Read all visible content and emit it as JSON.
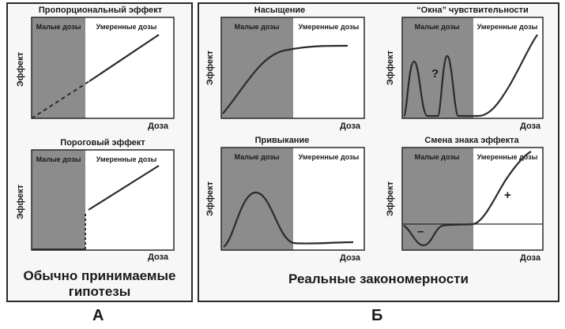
{
  "group_a": {
    "caption": "Обычно принимаемые гипотезы",
    "letter": "А"
  },
  "group_b": {
    "caption": "Реальные закономерности",
    "letter": "Б"
  },
  "zones": {
    "low": "Малые дозы",
    "moderate": "Умеренные дозы"
  },
  "axes": {
    "x": "Доза",
    "y": "Эффект"
  },
  "panels": [
    {
      "title": "Пропорциональный эффект"
    },
    {
      "title": "Пороговый эффект"
    },
    {
      "title": "Насыщение"
    },
    {
      "title": "“Окна” чувствительности",
      "marker": "?"
    },
    {
      "title": "Привыкание"
    },
    {
      "title": "Смена знака эффекта",
      "negative_sign": "–",
      "positive_sign": "+"
    }
  ],
  "colors": {
    "low_zone_fill": "#8c8c8c",
    "curve": "#2b2b2b",
    "frame": "#2a2a2a"
  }
}
